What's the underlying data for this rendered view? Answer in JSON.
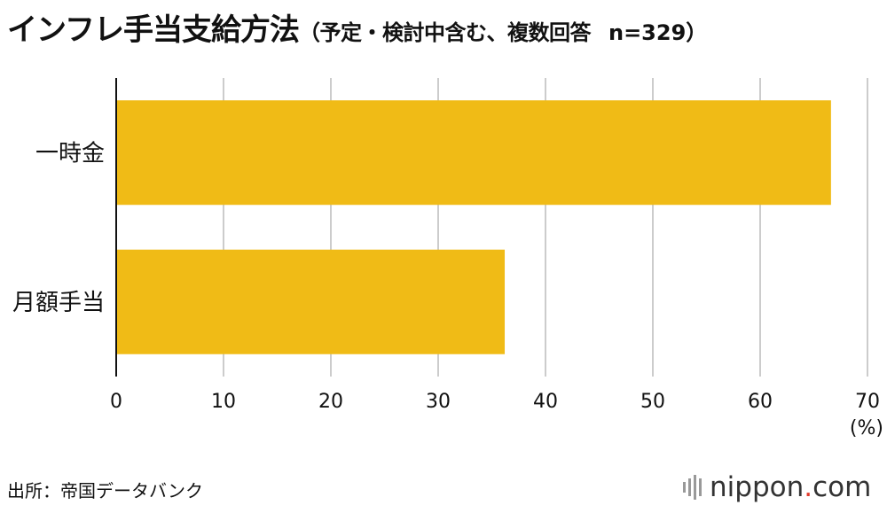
{
  "header": {
    "title": "インフレ手当支給方法",
    "subtitle": "（予定・検討中含む、複数回答",
    "sample": "n=329",
    "subtitle_close": "）"
  },
  "chart_data": {
    "type": "bar",
    "orientation": "horizontal",
    "title": "インフレ手当支給方法（予定・検討中含む、複数回答　n=329）",
    "categories": [
      "一時金",
      "月額手当"
    ],
    "values": [
      66.6,
      36.2
    ],
    "xlim": [
      0,
      70
    ],
    "xticks": [
      "0",
      "10",
      "20",
      "30",
      "40",
      "50",
      "60",
      "70"
    ],
    "unit": "(%)",
    "bar_color": "#f0bb16",
    "grid": true,
    "legend": "none"
  },
  "footer": {
    "source": "出所：帝国データバンク",
    "logo_main": "nippon",
    "logo_dot": ".",
    "logo_tld": "com"
  }
}
